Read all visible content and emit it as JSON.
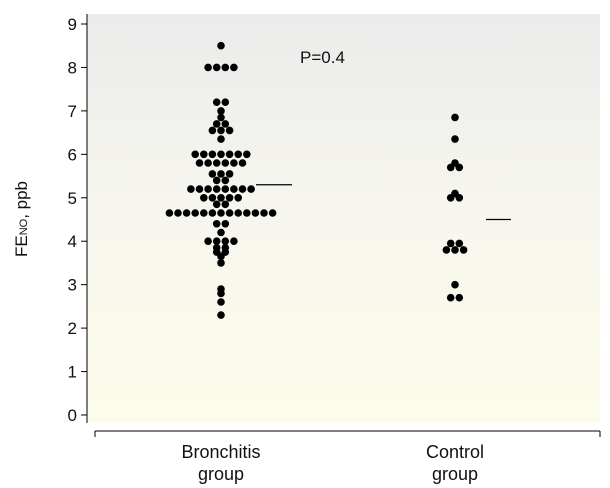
{
  "chart_data": {
    "type": "scatter",
    "ylabel_main": "FE",
    "ylabel_sub": "NO",
    "ylabel_rest": ", ppb",
    "ylim": [
      0,
      9
    ],
    "yticks": [
      "0",
      "1",
      "2",
      "3",
      "4",
      "5",
      "6",
      "7",
      "8",
      "9"
    ],
    "categories": [
      [
        "Bronchitis",
        "group"
      ],
      [
        "Control",
        "group"
      ]
    ],
    "annotation": "P=0.4",
    "background": [
      "#ebebeb",
      "#f7f6ee",
      "#fdfcea"
    ],
    "point_color": "#000000",
    "groups": [
      {
        "rows": [
          {
            "y": 8.5,
            "n": 1
          },
          {
            "y": 8.0,
            "n": 4
          },
          {
            "y": 7.2,
            "n": 2
          },
          {
            "y": 7.0,
            "n": 1
          },
          {
            "y": 6.85,
            "n": 1
          },
          {
            "y": 6.7,
            "n": 2
          },
          {
            "y": 6.55,
            "n": 3
          },
          {
            "y": 6.35,
            "n": 1
          },
          {
            "y": 6.0,
            "n": 7
          },
          {
            "y": 5.8,
            "n": 6
          },
          {
            "y": 5.55,
            "n": 3
          },
          {
            "y": 5.4,
            "n": 2
          },
          {
            "y": 5.2,
            "n": 8
          },
          {
            "y": 5.0,
            "n": 5
          },
          {
            "y": 4.85,
            "n": 2
          },
          {
            "y": 4.65,
            "n": 13
          },
          {
            "y": 4.4,
            "n": 2
          },
          {
            "y": 4.2,
            "n": 1
          },
          {
            "y": 4.0,
            "n": 4
          },
          {
            "y": 3.85,
            "n": 2
          },
          {
            "y": 3.75,
            "n": 2
          },
          {
            "y": 3.65,
            "n": 1
          },
          {
            "y": 3.5,
            "n": 1
          },
          {
            "y": 2.9,
            "n": 1
          },
          {
            "y": 2.8,
            "n": 1
          },
          {
            "y": 2.6,
            "n": 1
          },
          {
            "y": 2.3,
            "n": 1
          }
        ],
        "mean": 5.3
      },
      {
        "rows": [
          {
            "y": 6.85,
            "n": 1
          },
          {
            "y": 6.35,
            "n": 1
          },
          {
            "y": 5.8,
            "n": 1
          },
          {
            "y": 5.7,
            "n": 2
          },
          {
            "y": 5.1,
            "n": 1
          },
          {
            "y": 5.0,
            "n": 2
          },
          {
            "y": 3.95,
            "n": 2
          },
          {
            "y": 3.8,
            "n": 3
          },
          {
            "y": 3.0,
            "n": 1
          },
          {
            "y": 2.7,
            "n": 2
          }
        ],
        "mean": 4.5
      }
    ]
  }
}
